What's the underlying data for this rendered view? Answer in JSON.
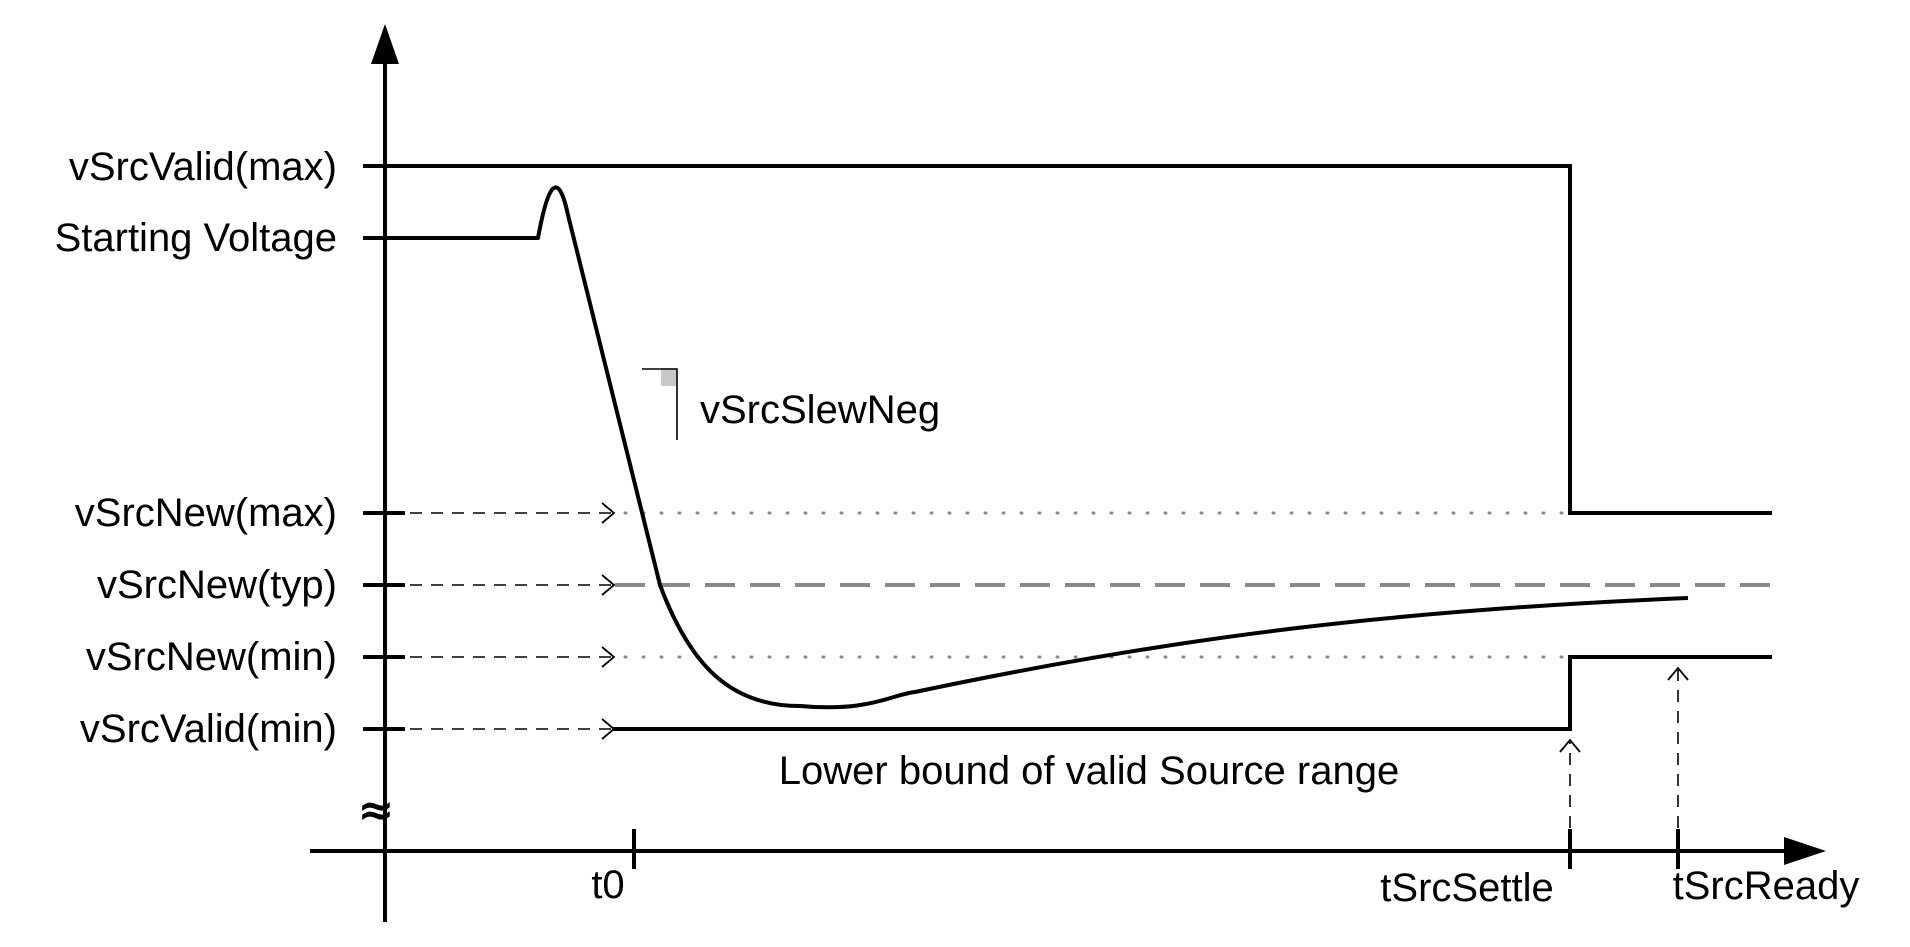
{
  "diagram": {
    "y_labels": {
      "vsrc_valid_max": "vSrcValid(max)",
      "starting_voltage": "Starting Voltage",
      "vsrc_new_max": "vSrcNew(max)",
      "vsrc_new_typ": "vSrcNew(typ)",
      "vsrc_new_min": "vSrcNew(min)",
      "vsrc_valid_min": "vSrcValid(min)"
    },
    "x_labels": {
      "t0": "t0",
      "tsrc_settle": "tSrcSettle",
      "tsrc_ready": "tSrcReady"
    },
    "annotations": {
      "slew": "vSrcSlewNeg",
      "lower_bound": "Lower bound of valid Source range",
      "axis_break": "≈"
    }
  }
}
